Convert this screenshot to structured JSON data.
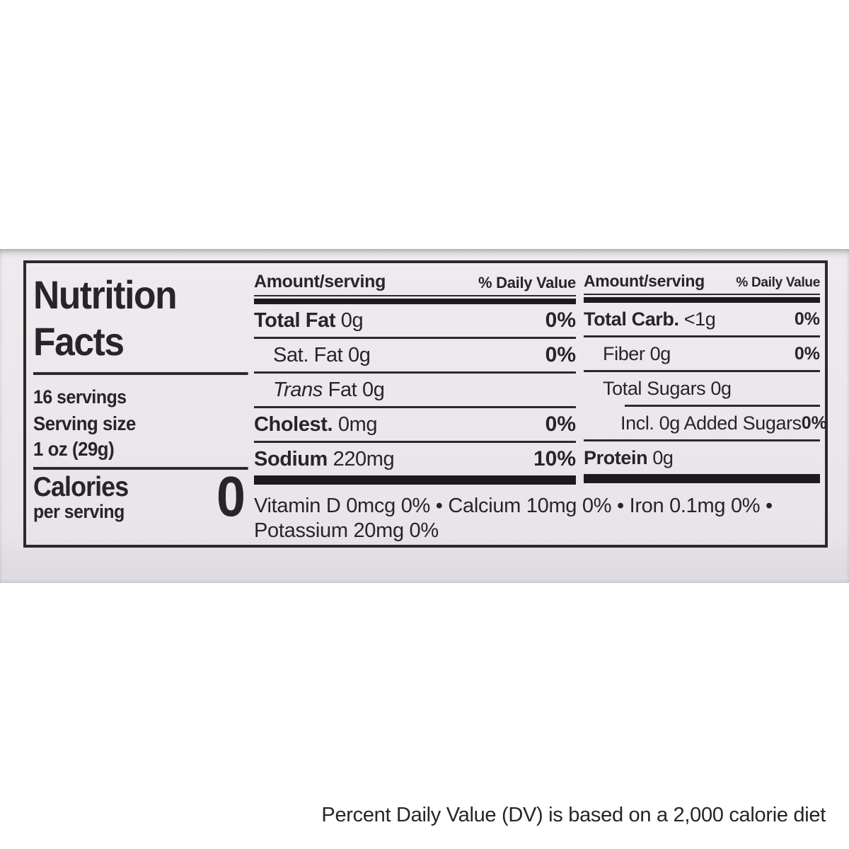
{
  "colors": {
    "background": "#ffffff",
    "label_paper": "#eae8ec",
    "text": "#29232a",
    "bar": "#1e1a1c"
  },
  "label": {
    "title": {
      "line1": "Nutrition",
      "line2": "Facts"
    },
    "servings": "16 servings",
    "serving_size_label": "Serving size",
    "serving_size_value": "1 oz (29g)",
    "calories": {
      "label": "Calories",
      "sublabel": "per serving",
      "value": "0"
    },
    "header": {
      "amount": "Amount/serving",
      "daily_value": "% Daily Value"
    },
    "columns": [
      {
        "rows": [
          {
            "bold": "Total Fat",
            "rest": " 0g",
            "dv": "0%"
          },
          {
            "rest": "Sat. Fat 0g",
            "dv": "0%"
          },
          {
            "italic": "Trans",
            "rest": " Fat 0g",
            "dv": ""
          },
          {
            "bold": "Cholest.",
            "rest": " 0mg",
            "dv": "0%"
          },
          {
            "bold": "Sodium",
            "rest": " 220mg",
            "dv": "10%"
          }
        ]
      },
      {
        "rows": [
          {
            "bold": "Total Carb.",
            "rest": " <1g",
            "dv": "0%"
          },
          {
            "rest": "Fiber 0g",
            "dv": "0%"
          },
          {
            "rest": "Total Sugars 0g",
            "dv": ""
          },
          {
            "rest": "Incl. 0g Added Sugars",
            "dv": "0%"
          },
          {
            "bold": "Protein",
            "rest": " 0g",
            "dv": ""
          }
        ]
      }
    ],
    "micronutrients": {
      "line1": "Vitamin D 0mcg 0% • Calcium 10mg 0% • Iron 0.1mg 0% •",
      "line2": "Potassium 20mg 0%"
    },
    "footnote": "Percent Daily Value (DV) is based on a 2,000 calorie diet"
  }
}
